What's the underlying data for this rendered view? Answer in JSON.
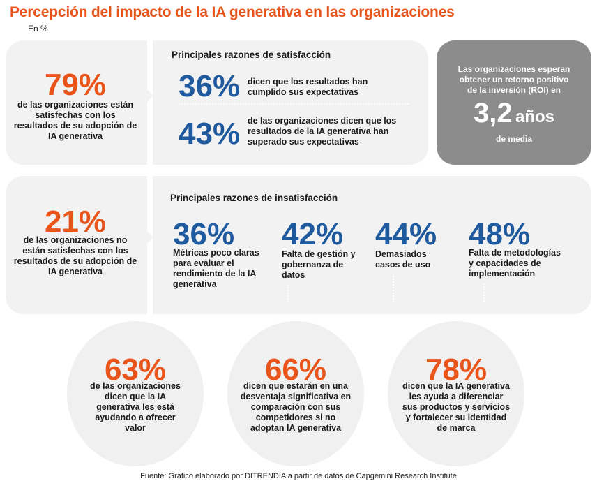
{
  "title": "Percepción del impacto de la IA generativa en las organizaciones",
  "unit": "En %",
  "satisfied": {
    "percent": "79%",
    "text": "de las organizaciones están satisfechas con los resultados de su adopción de IA generativa"
  },
  "satisfaction_reasons": {
    "heading": "Principales razones de satisfacción",
    "items": [
      {
        "percent": "36%",
        "text": "dicen que los resultados han cumplido sus expectativas"
      },
      {
        "percent": "43%",
        "text": "de las organizaciones dicen que los resultados de la IA generativa han superado sus expectativas"
      }
    ]
  },
  "roi": {
    "text": "Las organizaciones esperan obtener un retorno positivo de la inversión (ROI) en",
    "value": "3,2",
    "unit": "años",
    "suffix": "de media"
  },
  "unsatisfied": {
    "percent": "21%",
    "text": "de las organizaciones no están satisfechas con los resultados de su adopción de IA generativa"
  },
  "dissatisfaction_reasons": {
    "heading": "Principales razones de insatisfacción",
    "items": [
      {
        "percent": "36%",
        "text": "Métricas poco claras para evaluar el rendimiento de la IA generativa"
      },
      {
        "percent": "42%",
        "text": "Falta de gestión y gobernanza de datos"
      },
      {
        "percent": "44%",
        "text": "Demasiados casos de uso"
      },
      {
        "percent": "48%",
        "text": "Falta de metodologías y capacidades de implementación"
      }
    ]
  },
  "circles": [
    {
      "percent": "63%",
      "text": "de las organizaciones dicen que la IA generativa les está ayudando a ofrecer valor"
    },
    {
      "percent": "66%",
      "text": "dicen que estarán en una desventaja significativa en comparación con sus competidores si no adoptan IA generativa"
    },
    {
      "percent": "78%",
      "text": "dicen que la IA generativa les ayuda a diferenciar sus productos y servicios y fortalecer su identidad de marca"
    }
  ],
  "footer": "Fuente: Gráfico elaborado por DITRENDIA a partir de datos de Capgemini Research Institute",
  "colors": {
    "accent": "#e8541a",
    "blue": "#1f5a9e",
    "panel": "#f2f2f2",
    "roi": "#8c8c8c"
  }
}
